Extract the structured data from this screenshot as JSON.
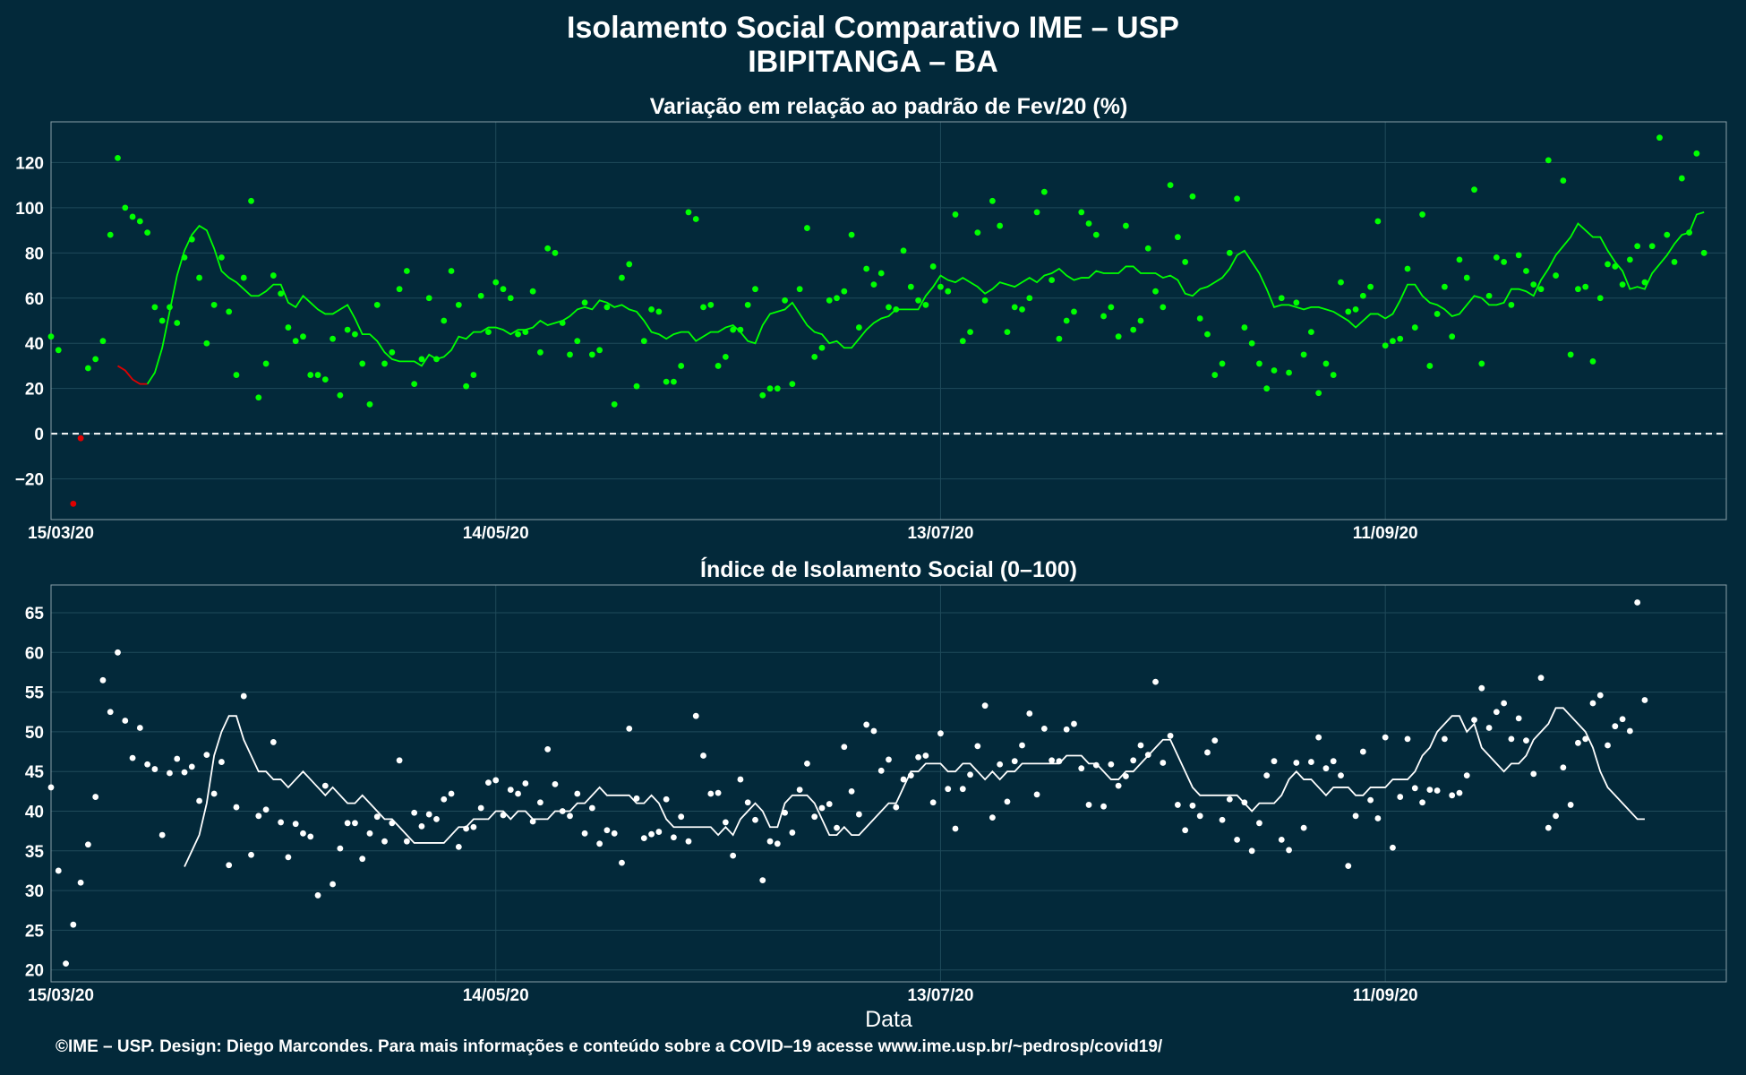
{
  "header": {
    "title": "Isolamento Social Comparativo IME – USP",
    "subtitle": "IBIPITANGA – BA"
  },
  "footer": {
    "credit": "©IME – USP. Design: Diego Marcondes. Para mais informações e conteúdo sobre a COVID–19 acesse www.ime.usp.br/~pedrosp/covid19/"
  },
  "colors": {
    "background": "#03293a",
    "grid": "#1f4a5a",
    "panel_border": "#8aa0a8",
    "positive_points": "#00ff00",
    "negative_points": "#e00000",
    "index_points": "#ffffff"
  },
  "chart_data": [
    {
      "type": "scatter",
      "title": "Variação em relação ao padrão de Fev/20 (%)",
      "xlabel": "",
      "ylabel": "",
      "x_start": "15/03/20",
      "x_tick_labels": [
        "15/03/20",
        "14/05/20",
        "13/07/20",
        "11/09/20"
      ],
      "y_ticks": [
        "−20",
        "0",
        "20",
        "40",
        "60",
        "80",
        "100",
        "120"
      ],
      "xlim_days": [
        0,
        226
      ],
      "ylim": [
        -38,
        138
      ],
      "reference_line": 0,
      "grid": true,
      "points": [
        43,
        37,
        null,
        -31,
        -2,
        29,
        33,
        41,
        88,
        122,
        100,
        96,
        94,
        89,
        56,
        50,
        56,
        49,
        78,
        86,
        69,
        40,
        57,
        78,
        54,
        26,
        69,
        103,
        16,
        31,
        70,
        62,
        47,
        41,
        43,
        26,
        26,
        24,
        42,
        17,
        46,
        44,
        31,
        13,
        57,
        31,
        36,
        64,
        72,
        22,
        33,
        60,
        33,
        50,
        72,
        57,
        21,
        26,
        61,
        45,
        67,
        64,
        60,
        44,
        45,
        63,
        36,
        82,
        80,
        49,
        35,
        41,
        58,
        35,
        37,
        56,
        13,
        69,
        75,
        21,
        41,
        55,
        54,
        23,
        23,
        30,
        98,
        95,
        56,
        57,
        30,
        34,
        46,
        46,
        57,
        64,
        17,
        20,
        20,
        59,
        22,
        64,
        91,
        34,
        38,
        59,
        60,
        63,
        88,
        47,
        73,
        66,
        71,
        56,
        55,
        81,
        65,
        59,
        57,
        74,
        65,
        63,
        97,
        41,
        45,
        89,
        59,
        103,
        92,
        45,
        56,
        55,
        60,
        98,
        107,
        68,
        42,
        50,
        54,
        98,
        93,
        88,
        52,
        56,
        43,
        92,
        46,
        50,
        82,
        63,
        56,
        110,
        87,
        76,
        105,
        51,
        44,
        26,
        31,
        80,
        104,
        47,
        40,
        31,
        20,
        28,
        60,
        27,
        58,
        35,
        45,
        18,
        31,
        26,
        67,
        54,
        55,
        61,
        65,
        94,
        39,
        41,
        42,
        73,
        47,
        97,
        30,
        53,
        65,
        43,
        77,
        69,
        108,
        31,
        61,
        78,
        76,
        57,
        79,
        72,
        66,
        64,
        121,
        70,
        112,
        35,
        64,
        65,
        32,
        60,
        75,
        74,
        66,
        77,
        83,
        67,
        83,
        131,
        88,
        76,
        113,
        89,
        124,
        80
      ],
      "moving_average": [
        30,
        28,
        24,
        22,
        22,
        27,
        38,
        54,
        70,
        81,
        88,
        92,
        90,
        82,
        72,
        69,
        67,
        64,
        61,
        61,
        63,
        66,
        66,
        58,
        56,
        61,
        58,
        55,
        53,
        53,
        55,
        57,
        51,
        44,
        44,
        41,
        36,
        33,
        32,
        32,
        32,
        30,
        35,
        33,
        34,
        37,
        43,
        42,
        45,
        45,
        47,
        47,
        46,
        44,
        46,
        46,
        47,
        50,
        48,
        49,
        50,
        52,
        55,
        56,
        55,
        59,
        58,
        56,
        57,
        55,
        54,
        50,
        45,
        44,
        42,
        44,
        45,
        45,
        41,
        43,
        45,
        45,
        47,
        48,
        45,
        41,
        40,
        48,
        53,
        54,
        55,
        58,
        53,
        48,
        45,
        44,
        40,
        41,
        38,
        38,
        42,
        46,
        49,
        51,
        52,
        55,
        55,
        55,
        55,
        61,
        65,
        70,
        68,
        67,
        69,
        67,
        65,
        62,
        64,
        67,
        66,
        65,
        67,
        69,
        67,
        70,
        71,
        73,
        70,
        68,
        69,
        69,
        72,
        71,
        71,
        71,
        74,
        74,
        71,
        71,
        71,
        69,
        70,
        68,
        62,
        61,
        64,
        65,
        67,
        69,
        73,
        79,
        81,
        76,
        71,
        64,
        56,
        57,
        57,
        56,
        55,
        56,
        56,
        55,
        54,
        52,
        50,
        47,
        50,
        53,
        53,
        51,
        53,
        59,
        66,
        66,
        61,
        58,
        57,
        55,
        52,
        53,
        57,
        61,
        60,
        57,
        57,
        58,
        64,
        64,
        63,
        61,
        68,
        73,
        79,
        83,
        87,
        93,
        90,
        87,
        87,
        81,
        76,
        72,
        64,
        65,
        64,
        71,
        75,
        79,
        84,
        88,
        89,
        97,
        98
      ]
    },
    {
      "type": "scatter",
      "title": "Índice de Isolamento Social (0–100)",
      "xlabel": "Data",
      "ylabel": "",
      "x_start": "15/03/20",
      "x_tick_labels": [
        "15/03/20",
        "14/05/20",
        "13/07/20",
        "11/09/20"
      ],
      "y_ticks": [
        "20",
        "25",
        "30",
        "35",
        "40",
        "45",
        "50",
        "55",
        "60",
        "65"
      ],
      "xlim_days": [
        0,
        226
      ],
      "ylim": [
        18.5,
        68.5
      ],
      "grid": true,
      "points": [
        43,
        32.5,
        20.8,
        25.7,
        31,
        35.8,
        41.8,
        56.5,
        52.5,
        60,
        51.4,
        46.7,
        50.5,
        45.9,
        45.3,
        37,
        44.8,
        46.6,
        44.9,
        45.6,
        41.3,
        47.1,
        42.2,
        46.2,
        33.2,
        40.5,
        54.5,
        34.5,
        39.4,
        40.2,
        48.7,
        38.6,
        34.2,
        38.4,
        37.2,
        36.8,
        29.4,
        43.2,
        30.8,
        35.3,
        38.5,
        38.5,
        34,
        37.2,
        39.3,
        36.2,
        38.5,
        46.4,
        36.2,
        39.8,
        38.1,
        39.6,
        39,
        41.5,
        42.2,
        35.5,
        37.8,
        38,
        40.4,
        43.6,
        43.9,
        39.5,
        42.7,
        42.2,
        43.5,
        38.7,
        41.1,
        47.8,
        43.4,
        40,
        39.4,
        42.2,
        37.2,
        40.4,
        35.9,
        37.6,
        37.2,
        33.5,
        50.4,
        41.6,
        36.6,
        37.1,
        37.4,
        41.5,
        36.7,
        39.3,
        36.2,
        52,
        47,
        42.2,
        42.3,
        38.6,
        34.4,
        44,
        41.1,
        38.9,
        31.3,
        36.2,
        35.9,
        39.8,
        37.3,
        42.7,
        46,
        39.3,
        40.4,
        40.9,
        37.9,
        48.1,
        42.5,
        39.6,
        50.9,
        50.1,
        45.1,
        46.5,
        40.5,
        44,
        44.5,
        46.8,
        47,
        41.1,
        49.8,
        42.8,
        37.8,
        42.8,
        44.6,
        48.2,
        53.3,
        39.2,
        45.9,
        41.2,
        46.3,
        48.3,
        52.3,
        42.1,
        50.4,
        46.4,
        46.3,
        50.3,
        51,
        45.4,
        40.8,
        45.8,
        40.6,
        45.9,
        43.2,
        44.4,
        46.4,
        48.3,
        47.1,
        56.3,
        46.1,
        49.5,
        40.8,
        37.6,
        40.7,
        39.4,
        47.4,
        48.9,
        38.9,
        41.5,
        36.4,
        41.1,
        35,
        38.5,
        44.5,
        46.3,
        36.4,
        35.1,
        46.1,
        37.9,
        46.2,
        49.3,
        45.4,
        46.3,
        44.5,
        33.1,
        39.4,
        47.5,
        41.4,
        39.1,
        49.3,
        35.4,
        41.8,
        49.1,
        42.9,
        41.1,
        42.7,
        42.6,
        49.1,
        42,
        42.3,
        44.5,
        51.5,
        55.5,
        50.5,
        52.5,
        53.6,
        49.1,
        51.7,
        48.9,
        44.7,
        56.8,
        37.9,
        39.4,
        45.5,
        40.8,
        48.6,
        49.1,
        53.6,
        54.6,
        48.3,
        50.7,
        51.6,
        50.1,
        66.3,
        54
      ],
      "moving_average": [
        33,
        35,
        37,
        41,
        47,
        50,
        52,
        52,
        49,
        47,
        45,
        45,
        44,
        44,
        43,
        44,
        45,
        44,
        43,
        42,
        43,
        42,
        41,
        41,
        42,
        41,
        40,
        39,
        39,
        38,
        37,
        36,
        36,
        36,
        36,
        36,
        37,
        38,
        38,
        39,
        39,
        39,
        40,
        40,
        39,
        40,
        40,
        39,
        39,
        39,
        40,
        40,
        40,
        41,
        41,
        42,
        43,
        42,
        42,
        42,
        42,
        41,
        41,
        42,
        41,
        39,
        38,
        38,
        38,
        38,
        38,
        38,
        37,
        38,
        37,
        39,
        40,
        41,
        40,
        38,
        38,
        41,
        42,
        42,
        42,
        41,
        39,
        37,
        37,
        38,
        37,
        37,
        38,
        39,
        40,
        41,
        41,
        43,
        45,
        45,
        46,
        46,
        46,
        45,
        45,
        46,
        46,
        45,
        44,
        45,
        44,
        45,
        45,
        46,
        46,
        46,
        46,
        46,
        46,
        47,
        47,
        47,
        46,
        46,
        45,
        44,
        44,
        45,
        45,
        46,
        47,
        48,
        49,
        49,
        47,
        45,
        43,
        42,
        42,
        42,
        42,
        42,
        42,
        41,
        40,
        41,
        41,
        41,
        42,
        44,
        45,
        44,
        44,
        43,
        42,
        43,
        43,
        43,
        42,
        42,
        43,
        43,
        43,
        44,
        44,
        44,
        45,
        47,
        48,
        50,
        51,
        52,
        52,
        50,
        51,
        48,
        47,
        46,
        45,
        46,
        46,
        47,
        49,
        50,
        51,
        53,
        53,
        52,
        51,
        50,
        48,
        45,
        43,
        42,
        41,
        40,
        39,
        39
      ]
    }
  ]
}
